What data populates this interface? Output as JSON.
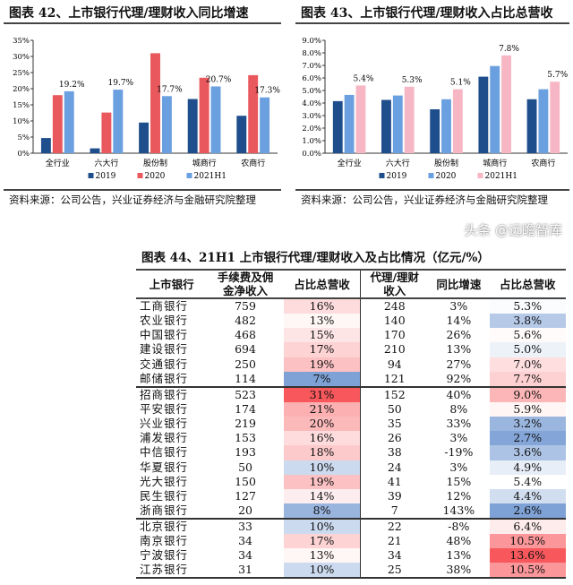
{
  "charts_meta": {
    "source": "资料来源：公司公告，兴业证券经济与金融研究院整理"
  },
  "chart_data": [
    {
      "type": "bar",
      "title": "图表 42、上市银行代理/理财收入同比增速",
      "categories": [
        "全行业",
        "六大行",
        "股份制",
        "城商行",
        "农商行"
      ],
      "ylim": [
        0,
        35
      ],
      "yticks": [
        "0%",
        "5%",
        "10%",
        "15%",
        "20%",
        "25%",
        "30%",
        "35%"
      ],
      "legend_position": "bottom",
      "grid": false,
      "series": [
        {
          "name": "2019",
          "color": "#1f4e8c",
          "values": [
            4.7,
            1.5,
            9.5,
            16.8,
            11.6
          ]
        },
        {
          "name": "2020",
          "color": "#e8585c",
          "values": [
            18.0,
            12.6,
            31.0,
            23.4,
            24.2
          ]
        },
        {
          "name": "2021H1",
          "color": "#6a9fe0",
          "values": [
            19.2,
            19.7,
            17.7,
            20.7,
            17.3
          ],
          "labels": [
            "19.2%",
            "19.7%",
            "17.7%",
            "20.7%",
            "17.3%"
          ]
        }
      ]
    },
    {
      "type": "bar",
      "title": "图表 43、上市银行代理/理财收入占比总营收",
      "categories": [
        "全行业",
        "六大行",
        "股份制",
        "城商行",
        "农商行"
      ],
      "ylim": [
        0,
        9
      ],
      "yticks": [
        "0.0%",
        "1.0%",
        "2.0%",
        "3.0%",
        "4.0%",
        "5.0%",
        "6.0%",
        "7.0%",
        "8.0%",
        "9.0%"
      ],
      "legend_position": "bottom",
      "grid": false,
      "series": [
        {
          "name": "2019",
          "color": "#1f4e8c",
          "values": [
            4.15,
            4.25,
            3.5,
            6.1,
            4.3
          ]
        },
        {
          "name": "2020",
          "color": "#6a9fe0",
          "values": [
            4.65,
            4.6,
            4.3,
            6.95,
            5.1
          ]
        },
        {
          "name": "2021H1",
          "color": "#f7b6c4",
          "values": [
            5.4,
            5.3,
            5.1,
            7.8,
            5.7
          ],
          "labels": [
            "5.4%",
            "5.3%",
            "5.1%",
            "7.8%",
            "5.7%"
          ]
        }
      ]
    }
  ],
  "table": {
    "title": "图表 44、21H1 上市银行代理/理财收入及占比情况（亿元/%）",
    "headers": [
      "上市银行",
      "手续费及佣\n金净收入",
      "占比总营收",
      "代理/理财\n收入",
      "同比增速",
      "占比总营收"
    ],
    "rows": [
      [
        "工商银行",
        "759",
        "16%",
        "248",
        "3%",
        "5.3%"
      ],
      [
        "农业银行",
        "482",
        "13%",
        "140",
        "14%",
        "3.8%"
      ],
      [
        "中国银行",
        "468",
        "15%",
        "170",
        "26%",
        "5.6%"
      ],
      [
        "建设银行",
        "694",
        "17%",
        "210",
        "13%",
        "5.0%"
      ],
      [
        "交通银行",
        "250",
        "19%",
        "94",
        "27%",
        "7.0%"
      ],
      [
        "邮储银行",
        "114",
        "7%",
        "121",
        "92%",
        "7.7%"
      ],
      [
        "招商银行",
        "523",
        "31%",
        "152",
        "40%",
        "9.0%"
      ],
      [
        "平安银行",
        "174",
        "21%",
        "50",
        "8%",
        "5.9%"
      ],
      [
        "兴业银行",
        "219",
        "20%",
        "35",
        "33%",
        "3.2%"
      ],
      [
        "浦发银行",
        "153",
        "16%",
        "26",
        "3%",
        "2.7%"
      ],
      [
        "中信银行",
        "193",
        "18%",
        "38",
        "-19%",
        "3.6%"
      ],
      [
        "华夏银行",
        "50",
        "10%",
        "24",
        "3%",
        "4.9%"
      ],
      [
        "光大银行",
        "150",
        "19%",
        "41",
        "15%",
        "5.4%"
      ],
      [
        "民生银行",
        "127",
        "14%",
        "39",
        "12%",
        "4.4%"
      ],
      [
        "浙商银行",
        "20",
        "8%",
        "7",
        "143%",
        "2.6%"
      ],
      [
        "北京银行",
        "33",
        "10%",
        "22",
        "-8%",
        "6.4%"
      ],
      [
        "南京银行",
        "34",
        "17%",
        "21",
        "48%",
        "10.5%"
      ],
      [
        "宁波银行",
        "34",
        "13%",
        "34",
        "13%",
        "13.6%"
      ],
      [
        "江苏银行",
        "31",
        "10%",
        "25",
        "38%",
        "10.5%"
      ]
    ],
    "group_ends": [
      5,
      14
    ]
  },
  "watermark": "头条 @远瞻智库",
  "heat_colors": {
    "low": "#7fa2d6",
    "mid": "#ffffff",
    "high": "#f8585c"
  }
}
